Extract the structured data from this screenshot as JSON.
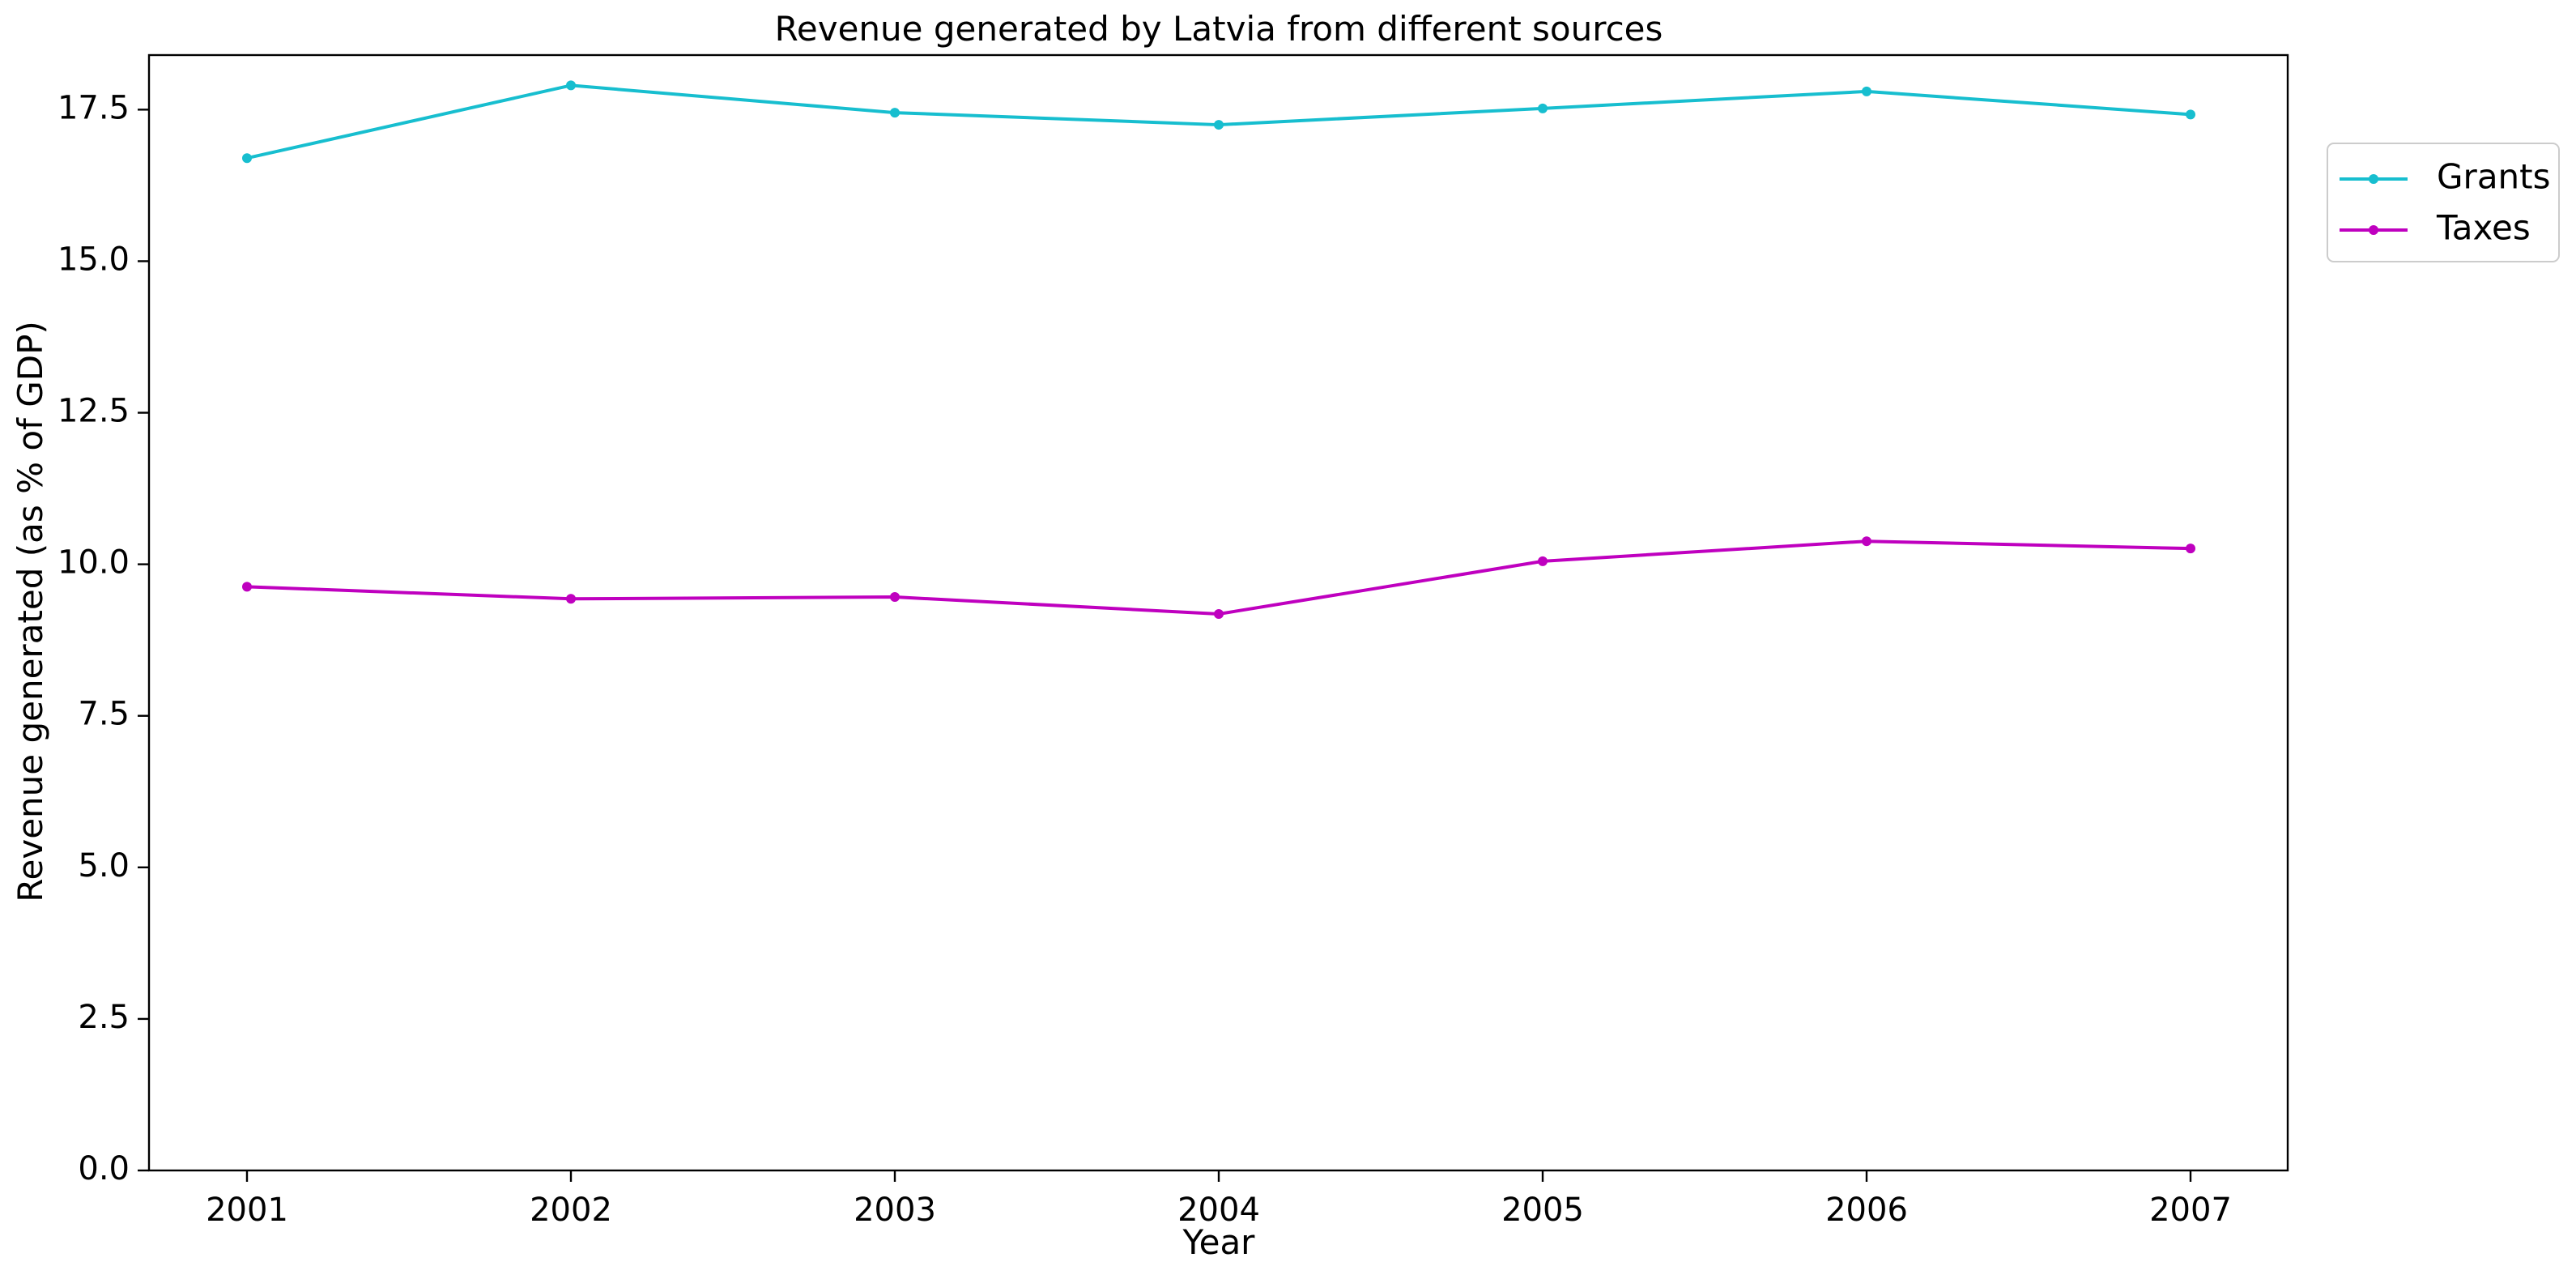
{
  "chart_data": {
    "type": "line",
    "title": "Revenue generated by Latvia from different sources",
    "xlabel": "Year",
    "ylabel": "Revenue generated (as % of GDP)",
    "categories": [
      "2001",
      "2002",
      "2003",
      "2004",
      "2005",
      "2006",
      "2007"
    ],
    "ylim": [
      0,
      18.4
    ],
    "yticks": [
      0.0,
      2.5,
      5.0,
      7.5,
      10.0,
      12.5,
      15.0,
      17.5
    ],
    "ytick_labels": [
      "0.0",
      "2.5",
      "5.0",
      "7.5",
      "10.0",
      "12.5",
      "15.0",
      "17.5"
    ],
    "grid": false,
    "legend_position": "top-right, outside plot area",
    "series": [
      {
        "name": "Grants",
        "color": "#17becf",
        "values": [
          16.7,
          17.9,
          17.45,
          17.25,
          17.52,
          17.8,
          17.42
        ]
      },
      {
        "name": "Taxes",
        "color": "#bf00bf",
        "values": [
          9.63,
          9.43,
          9.46,
          9.18,
          10.05,
          10.38,
          10.26
        ]
      }
    ]
  }
}
